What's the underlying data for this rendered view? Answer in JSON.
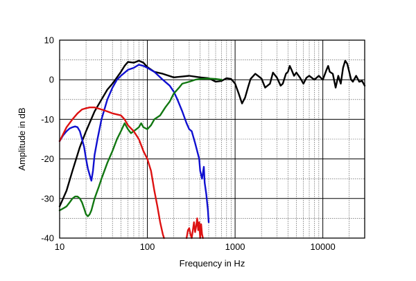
{
  "chart_data": {
    "type": "line",
    "title": "",
    "xlabel": "Frequency in Hz",
    "ylabel": "Amplitude in dB",
    "x_scale": "log",
    "xlim": [
      10,
      30000
    ],
    "ylim": [
      -40,
      10
    ],
    "grid": true,
    "x_ticks": [
      {
        "value": 10,
        "label": "10"
      },
      {
        "value": 100,
        "label": "100"
      },
      {
        "value": 1000,
        "label": "1000"
      },
      {
        "value": 10000,
        "label": "10000"
      }
    ],
    "y_ticks": [
      {
        "value": 10,
        "label": "10"
      },
      {
        "value": 0,
        "label": "0"
      },
      {
        "value": -10,
        "label": "-10"
      },
      {
        "value": -20,
        "label": "-20"
      },
      {
        "value": -30,
        "label": "-30"
      },
      {
        "value": -40,
        "label": "-40"
      }
    ],
    "series": [
      {
        "color": "#000000",
        "points": [
          [
            10,
            -32
          ],
          [
            12,
            -28
          ],
          [
            14,
            -23
          ],
          [
            17,
            -17
          ],
          [
            20,
            -13
          ],
          [
            25,
            -8
          ],
          [
            30,
            -5
          ],
          [
            35,
            -2.5
          ],
          [
            40,
            -1
          ],
          [
            50,
            2
          ],
          [
            55,
            3.5
          ],
          [
            60,
            4.5
          ],
          [
            70,
            4.3
          ],
          [
            80,
            4.8
          ],
          [
            90,
            4.3
          ],
          [
            100,
            3.2
          ],
          [
            120,
            2
          ],
          [
            150,
            1.5
          ],
          [
            200,
            0.6
          ],
          [
            250,
            0.8
          ],
          [
            300,
            1
          ],
          [
            400,
            0.6
          ],
          [
            500,
            0.4
          ],
          [
            600,
            -0.5
          ],
          [
            700,
            -0.3
          ],
          [
            800,
            0.4
          ],
          [
            900,
            0.2
          ],
          [
            1000,
            -1
          ],
          [
            1100,
            -3.5
          ],
          [
            1200,
            -6
          ],
          [
            1300,
            -4.5
          ],
          [
            1400,
            -2
          ],
          [
            1500,
            0.2
          ],
          [
            1700,
            1.5
          ],
          [
            2000,
            0.3
          ],
          [
            2200,
            -2
          ],
          [
            2500,
            -1
          ],
          [
            2700,
            1.8
          ],
          [
            3000,
            0.5
          ],
          [
            3300,
            -1.5
          ],
          [
            3500,
            -1
          ],
          [
            3800,
            1.5
          ],
          [
            4000,
            2
          ],
          [
            4200,
            3.5
          ],
          [
            4400,
            2.5
          ],
          [
            4700,
            1
          ],
          [
            5000,
            1.8
          ],
          [
            5500,
            0.5
          ],
          [
            6000,
            -1
          ],
          [
            6500,
            0.5
          ],
          [
            7000,
            1
          ],
          [
            8000,
            0
          ],
          [
            9000,
            1
          ],
          [
            10000,
            0
          ],
          [
            11000,
            2.5
          ],
          [
            11500,
            3.5
          ],
          [
            12000,
            2
          ],
          [
            13000,
            1.5
          ],
          [
            14000,
            -2
          ],
          [
            15000,
            1
          ],
          [
            16000,
            -1
          ],
          [
            17000,
            3
          ],
          [
            18000,
            4.8
          ],
          [
            19000,
            4
          ],
          [
            20000,
            2
          ],
          [
            21000,
            0
          ],
          [
            22000,
            -0.5
          ],
          [
            24000,
            1
          ],
          [
            26000,
            -0.5
          ],
          [
            28000,
            -0.3
          ],
          [
            30000,
            -1.5
          ]
        ]
      },
      {
        "color": "#1010d0",
        "points": [
          [
            10,
            -15.5
          ],
          [
            11,
            -14
          ],
          [
            12,
            -13
          ],
          [
            13,
            -12.3
          ],
          [
            14,
            -12
          ],
          [
            15,
            -11.8
          ],
          [
            16,
            -12
          ],
          [
            17,
            -13
          ],
          [
            18,
            -15
          ],
          [
            19,
            -17
          ],
          [
            20,
            -20
          ],
          [
            21,
            -22.5
          ],
          [
            22,
            -24
          ],
          [
            23,
            -25.5
          ],
          [
            24,
            -23
          ],
          [
            25,
            -19
          ],
          [
            27,
            -15
          ],
          [
            30,
            -10
          ],
          [
            35,
            -5
          ],
          [
            40,
            -2
          ],
          [
            45,
            0
          ],
          [
            50,
            1
          ],
          [
            60,
            2.5
          ],
          [
            70,
            3
          ],
          [
            80,
            3.8
          ],
          [
            90,
            3.5
          ],
          [
            100,
            3
          ],
          [
            120,
            2
          ],
          [
            150,
            0
          ],
          [
            180,
            -1.5
          ],
          [
            200,
            -3
          ],
          [
            220,
            -5
          ],
          [
            250,
            -8
          ],
          [
            280,
            -11
          ],
          [
            300,
            -12.5
          ],
          [
            320,
            -13
          ],
          [
            350,
            -16
          ],
          [
            370,
            -18
          ],
          [
            390,
            -20
          ],
          [
            400,
            -23
          ],
          [
            420,
            -25
          ],
          [
            440,
            -22
          ],
          [
            450,
            -26
          ],
          [
            470,
            -29
          ],
          [
            490,
            -33
          ],
          [
            500,
            -36
          ]
        ]
      },
      {
        "color": "#117711",
        "points": [
          [
            10,
            -33
          ],
          [
            11,
            -32.5
          ],
          [
            12,
            -32
          ],
          [
            13,
            -31
          ],
          [
            14,
            -30
          ],
          [
            15,
            -29.5
          ],
          [
            16,
            -29.5
          ],
          [
            17,
            -30
          ],
          [
            18,
            -31
          ],
          [
            19,
            -32.5
          ],
          [
            20,
            -34
          ],
          [
            21,
            -34.5
          ],
          [
            22,
            -34
          ],
          [
            23,
            -33
          ],
          [
            25,
            -30
          ],
          [
            28,
            -27
          ],
          [
            30,
            -25
          ],
          [
            35,
            -21
          ],
          [
            40,
            -18
          ],
          [
            45,
            -15
          ],
          [
            50,
            -13
          ],
          [
            55,
            -11
          ],
          [
            60,
            -12.5
          ],
          [
            65,
            -13.5
          ],
          [
            70,
            -13
          ],
          [
            80,
            -12
          ],
          [
            85,
            -11
          ],
          [
            90,
            -12
          ],
          [
            100,
            -12.5
          ],
          [
            110,
            -11.5
          ],
          [
            120,
            -10
          ],
          [
            140,
            -9
          ],
          [
            160,
            -7
          ],
          [
            180,
            -5.5
          ],
          [
            200,
            -3.5
          ],
          [
            230,
            -2
          ],
          [
            250,
            -1
          ],
          [
            300,
            -0.5
          ],
          [
            350,
            0
          ],
          [
            400,
            0.2
          ],
          [
            500,
            0.3
          ],
          [
            600,
            0.2
          ],
          [
            700,
            0
          ]
        ]
      },
      {
        "color": "#dd1111",
        "points": [
          [
            10,
            -15.5
          ],
          [
            12,
            -12
          ],
          [
            14,
            -10
          ],
          [
            16,
            -8.5
          ],
          [
            18,
            -7.5
          ],
          [
            20,
            -7.2
          ],
          [
            22,
            -7
          ],
          [
            25,
            -7
          ],
          [
            30,
            -7.5
          ],
          [
            35,
            -8
          ],
          [
            40,
            -8.5
          ],
          [
            50,
            -9
          ],
          [
            55,
            -10
          ],
          [
            60,
            -11.5
          ],
          [
            70,
            -13
          ],
          [
            80,
            -15
          ],
          [
            90,
            -18
          ],
          [
            100,
            -20
          ],
          [
            110,
            -23
          ],
          [
            120,
            -28
          ],
          [
            130,
            -32
          ],
          [
            140,
            -36
          ],
          [
            150,
            -39
          ],
          [
            155,
            -40
          ]
        ]
      },
      {
        "color": "#dd1111",
        "points": [
          [
            280,
            -40
          ],
          [
            290,
            -38
          ],
          [
            300,
            -37.5
          ],
          [
            310,
            -39
          ],
          [
            320,
            -40
          ],
          [
            330,
            -38
          ],
          [
            340,
            -36
          ],
          [
            350,
            -38.5
          ],
          [
            360,
            -37
          ],
          [
            370,
            -35
          ],
          [
            380,
            -38
          ],
          [
            390,
            -36
          ],
          [
            400,
            -40
          ],
          [
            410,
            -36.5
          ],
          [
            420,
            -39
          ],
          [
            430,
            -40
          ]
        ]
      }
    ]
  }
}
